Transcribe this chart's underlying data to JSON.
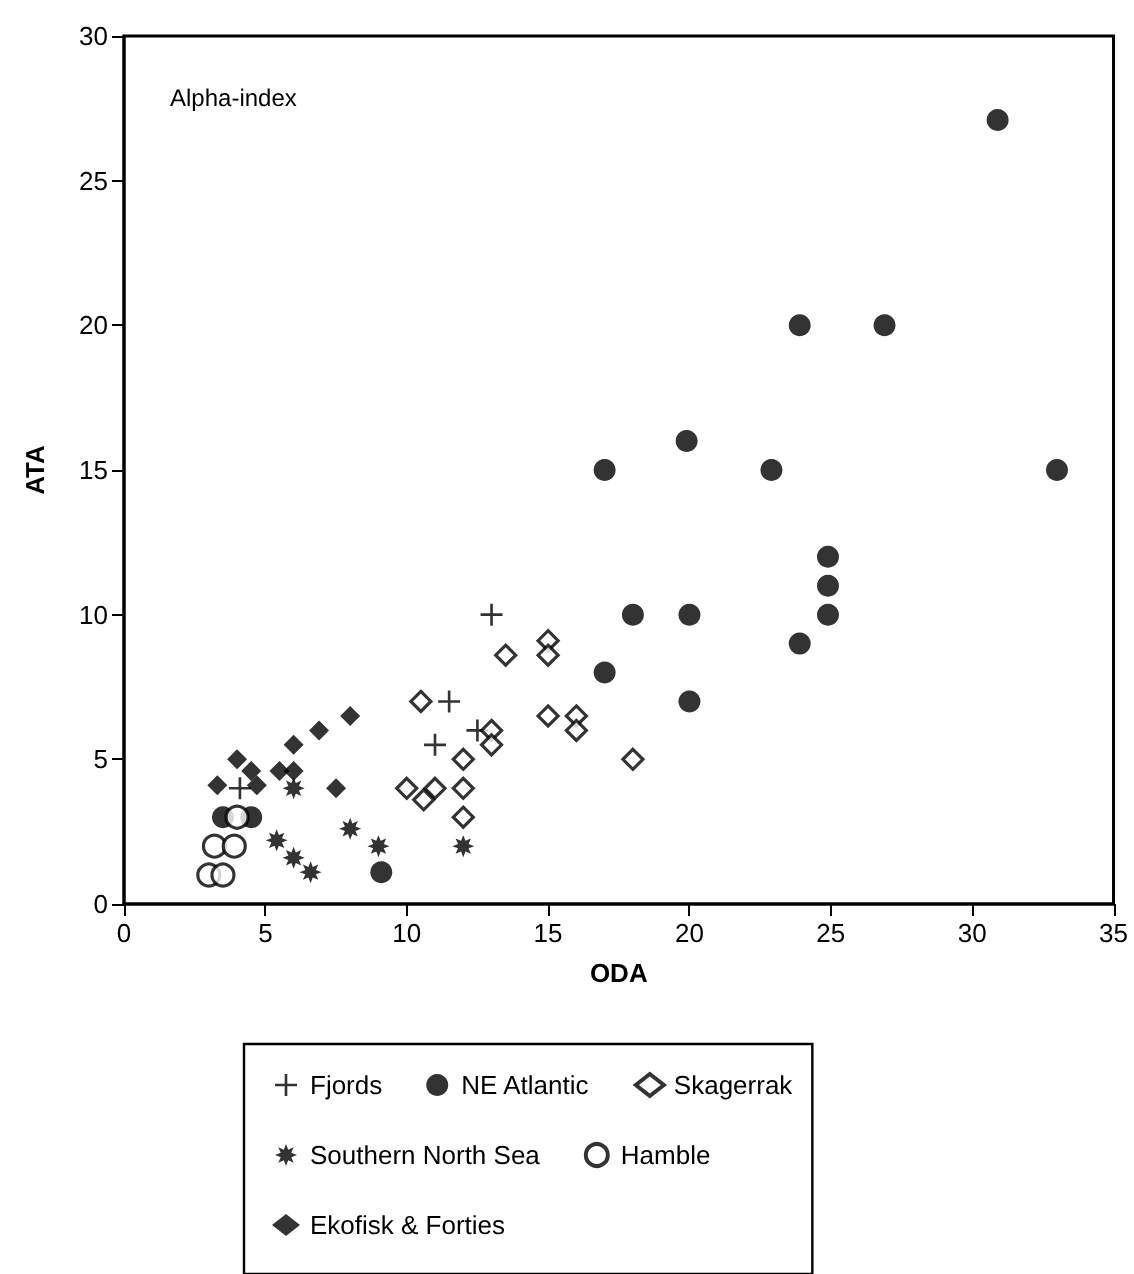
{
  "chart_data": {
    "type": "scatter",
    "xlabel": "ODA",
    "ylabel": "ATA",
    "annotations": [
      "Alpha-index"
    ],
    "xlim": [
      0,
      35
    ],
    "xticks": [
      0,
      5,
      10,
      15,
      20,
      25,
      30,
      35
    ],
    "ylim": [
      0,
      30
    ],
    "yticks": [
      0,
      5,
      10,
      15,
      20,
      25,
      30
    ],
    "grid": false,
    "legend": "bottom",
    "series": [
      {
        "name": "Fjords",
        "color": "#000000",
        "marker": "cross",
        "x": [
          13,
          11.5,
          11,
          12.5,
          4.1
        ],
        "values": [
          10,
          7,
          5.5,
          6,
          4
        ]
      },
      {
        "name": "NE Atlantic",
        "color": "#000000",
        "marker": "circle",
        "x": [
          30.9,
          23.9,
          26.9,
          19.9,
          17,
          22.9,
          33,
          24.9,
          24.9,
          24.9,
          18,
          20,
          23.9,
          17,
          20,
          9.1,
          3.5,
          4.5
        ],
        "values": [
          27.1,
          20,
          20,
          16,
          15,
          15,
          15,
          12,
          11,
          10,
          10,
          10,
          9,
          8,
          7,
          1.1,
          3,
          3
        ]
      },
      {
        "name": "Skagerrak",
        "color": "#000000",
        "marker": "diamond-open",
        "x": [
          10.5,
          13.5,
          15,
          15,
          15,
          16,
          16,
          18,
          13,
          13,
          12,
          10,
          10.6,
          11,
          12,
          12
        ],
        "values": [
          7,
          8.6,
          9.1,
          8.6,
          6.5,
          6.5,
          6,
          5,
          6,
          5.5,
          5,
          4,
          3.6,
          4,
          4,
          3
        ]
      },
      {
        "name": "Southern North Sea",
        "color": "#000000",
        "marker": "star",
        "x": [
          6,
          5.4,
          6,
          6.6,
          8,
          9,
          12
        ],
        "values": [
          4,
          2.2,
          1.6,
          1.1,
          2.6,
          2,
          2
        ]
      },
      {
        "name": "Hamble",
        "color": "#000000",
        "marker": "circle-open",
        "x": [
          3.2,
          3.9,
          3,
          3.5,
          4
        ],
        "values": [
          2,
          2,
          1,
          1,
          3
        ]
      },
      {
        "name": "Ekofisk & Forties",
        "color": "#000000",
        "marker": "diamond",
        "x": [
          4,
          4.5,
          3.3,
          4.7,
          6,
          6.9,
          8,
          5.5,
          6,
          7.5
        ],
        "values": [
          5,
          4.6,
          4.1,
          4.1,
          5.5,
          6,
          6.5,
          4.6,
          4.6,
          4
        ]
      }
    ]
  }
}
